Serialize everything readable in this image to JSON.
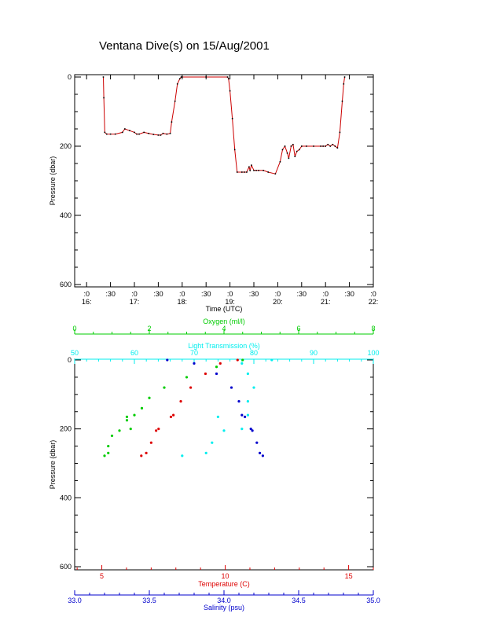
{
  "title": "Ventana Dive(s) on 15/Aug/2001",
  "colors": {
    "axis": "#000000",
    "temperature": "#dd0000",
    "salinity": "#0000cc",
    "oxygen": "#00cc00",
    "light": "#00eeee",
    "profile_line": "#cc0000",
    "profile_points": "#000000"
  },
  "chart_data": [
    {
      "type": "line",
      "xlabel": "Time (UTC)",
      "ylabel": "Pressure (dbar)",
      "xlim": [
        15.75,
        22.0
      ],
      "ylim": [
        600,
        0
      ],
      "x_ticks": [
        {
          "top": ":0",
          "bottom": "16:"
        },
        {
          "top": ":30",
          "bottom": ""
        },
        {
          "top": ":0",
          "bottom": "17:"
        },
        {
          "top": ":30",
          "bottom": ""
        },
        {
          "top": ":0",
          "bottom": "18:"
        },
        {
          "top": ":30",
          "bottom": ""
        },
        {
          "top": ":0",
          "bottom": "19:"
        },
        {
          "top": ":30",
          "bottom": ""
        },
        {
          "top": ":0",
          "bottom": "20:"
        },
        {
          "top": ":30",
          "bottom": ""
        },
        {
          "top": ":0",
          "bottom": "21:"
        },
        {
          "top": ":30",
          "bottom": ""
        },
        {
          "top": ":0",
          "bottom": "22:"
        }
      ],
      "y_ticks": [
        "0",
        "200",
        "400",
        "600"
      ],
      "series": [
        {
          "x": [
            16.35,
            16.36,
            16.38,
            16.42,
            16.5,
            16.6,
            16.75,
            16.8,
            16.9,
            17.0,
            17.05,
            17.1,
            17.2,
            17.3,
            17.4,
            17.5,
            17.55,
            17.6,
            17.68,
            17.75,
            17.78,
            17.85,
            17.9,
            17.95,
            17.98,
            18.0,
            18.5,
            18.95,
            18.97,
            19.0,
            19.05,
            19.1,
            19.15,
            19.25,
            19.3,
            19.35,
            19.4,
            19.42,
            19.45,
            19.5,
            19.55,
            19.6,
            19.7,
            19.8,
            19.95,
            20.05,
            20.1,
            20.15,
            20.2,
            20.23,
            20.28,
            20.32,
            20.36,
            20.4,
            20.45,
            20.5,
            20.6,
            20.75,
            20.9,
            20.95,
            21.0,
            21.05,
            21.1,
            21.15,
            21.2,
            21.25,
            21.3,
            21.35,
            21.38,
            21.4
          ],
          "y": [
            0,
            60,
            160,
            165,
            165,
            165,
            160,
            150,
            155,
            160,
            165,
            165,
            160,
            163,
            166,
            168,
            168,
            163,
            165,
            163,
            130,
            70,
            20,
            5,
            0,
            0,
            0,
            0,
            5,
            40,
            120,
            210,
            275,
            275,
            275,
            275,
            260,
            270,
            255,
            270,
            270,
            270,
            270,
            275,
            280,
            245,
            210,
            200,
            220,
            235,
            200,
            195,
            230,
            215,
            210,
            200,
            200,
            200,
            200,
            200,
            200,
            195,
            200,
            195,
            200,
            205,
            160,
            70,
            20,
            0
          ]
        }
      ]
    },
    {
      "type": "scatter",
      "ylabel": "Pressure (dbar)",
      "ylim": [
        600,
        0
      ],
      "y_ticks": [
        "0",
        "200",
        "400",
        "600"
      ],
      "axes": {
        "oxygen": {
          "label": "Oxygen (ml/l)",
          "range": [
            0,
            8
          ],
          "ticks": [
            "0",
            "2",
            "4",
            "6",
            "8"
          ]
        },
        "light": {
          "label": "Light Transmission (%)",
          "range": [
            50,
            100
          ],
          "ticks": [
            "50",
            "60",
            "70",
            "80",
            "90",
            "100"
          ]
        },
        "temperature": {
          "label": "Temperature (C)",
          "range": [
            3.9,
            16
          ],
          "ticks": [
            "5",
            "10",
            "15"
          ]
        },
        "salinity": {
          "label": "Salinity (psu)",
          "range": [
            33.0,
            35.0
          ],
          "ticks": [
            "33.0",
            "33.5",
            "34.0",
            "34.5",
            "35.0"
          ]
        }
      },
      "series": [
        {
          "name": "Oxygen",
          "p": [
            0,
            20,
            50,
            80,
            110,
            140,
            160,
            165,
            175,
            200,
            205,
            220,
            250,
            270,
            278
          ],
          "v": [
            4.5,
            3.8,
            3.0,
            2.4,
            2.0,
            1.8,
            1.6,
            1.4,
            1.4,
            1.5,
            1.2,
            1.0,
            0.9,
            0.9,
            0.8
          ]
        },
        {
          "name": "Light Transmission",
          "p": [
            0,
            10,
            40,
            80,
            120,
            160,
            165,
            200,
            205,
            240,
            270,
            278
          ],
          "v": [
            83,
            78,
            79,
            80,
            79,
            79,
            74,
            78,
            75,
            73,
            72,
            68
          ]
        },
        {
          "name": "Temperature",
          "p": [
            0,
            10,
            40,
            80,
            120,
            160,
            165,
            200,
            205,
            240,
            270,
            278
          ],
          "v": [
            10.5,
            9.8,
            9.2,
            8.6,
            8.2,
            7.9,
            7.8,
            7.3,
            7.2,
            7.0,
            6.8,
            6.6
          ]
        },
        {
          "name": "Salinity",
          "p": [
            0,
            10,
            40,
            80,
            120,
            160,
            165,
            200,
            205,
            240,
            270,
            278
          ],
          "v": [
            33.62,
            33.8,
            33.95,
            34.05,
            34.1,
            34.12,
            34.14,
            34.18,
            34.19,
            34.22,
            34.24,
            34.26
          ]
        }
      ]
    }
  ]
}
